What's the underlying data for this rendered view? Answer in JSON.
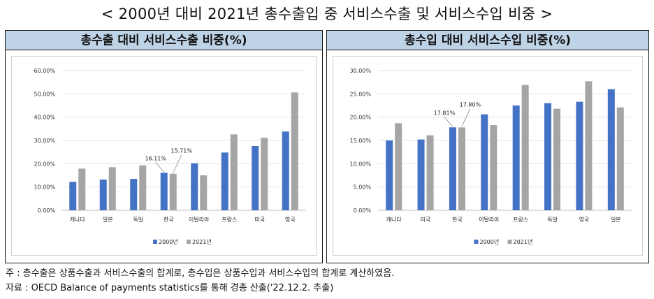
{
  "title": "< 2000년 대비 2021년 총수출입 중 서비스수출 및 서비스수입 비중 >",
  "colors": {
    "series_2000": "#4472c4",
    "series_2021": "#a5a5a5",
    "header_bg": "#bfd3e7"
  },
  "chart_data": [
    {
      "type": "bar",
      "title": "총수출 대비 서비스수출 비중(%)",
      "categories": [
        "캐나다",
        "일본",
        "독일",
        "한국",
        "이탈리아",
        "프랑스",
        "미국",
        "영국"
      ],
      "series": [
        {
          "name": "2000년",
          "values": [
            12.2,
            13.2,
            13.5,
            16.11,
            20.2,
            24.8,
            27.6,
            33.8
          ]
        },
        {
          "name": "2021년",
          "values": [
            17.9,
            18.5,
            19.3,
            15.71,
            15.0,
            32.6,
            31.1,
            50.6
          ]
        }
      ],
      "ylim": [
        0,
        60
      ],
      "yticks": [
        0,
        10,
        20,
        30,
        40,
        50,
        60
      ],
      "ytick_labels": [
        "0.00%",
        "10.00%",
        "20.00%",
        "30.00%",
        "40.00%",
        "50.00%",
        "60.00%"
      ],
      "annotations": [
        {
          "category": "한국",
          "series": "2000년",
          "text": "16.11%"
        },
        {
          "category": "한국",
          "series": "2021년",
          "text": "15.71%"
        }
      ],
      "legend": [
        "2000년",
        "2021년"
      ],
      "legend_position": "bottom",
      "xlabel": "",
      "ylabel": ""
    },
    {
      "type": "bar",
      "title": "총수입 대비 서비스수입 비중(%)",
      "categories": [
        "캐나다",
        "미국",
        "한국",
        "이탈리아",
        "프랑스",
        "독일",
        "영국",
        "일본"
      ],
      "series": [
        {
          "name": "2000년",
          "values": [
            15.0,
            15.2,
            17.81,
            20.6,
            22.5,
            23.0,
            23.3,
            26.0
          ]
        },
        {
          "name": "2021년",
          "values": [
            18.7,
            16.1,
            17.8,
            18.3,
            26.9,
            21.8,
            27.7,
            22.1
          ]
        }
      ],
      "ylim": [
        0,
        30
      ],
      "yticks": [
        0,
        5,
        10,
        15,
        20,
        25,
        30
      ],
      "ytick_labels": [
        "0.00%",
        "5.00%",
        "10.00%",
        "15.00%",
        "20.00%",
        "25.00%",
        "30.00%"
      ],
      "annotations": [
        {
          "category": "한국",
          "series": "2000년",
          "text": "17.81%"
        },
        {
          "category": "한국",
          "series": "2021년",
          "text": "17.80%"
        }
      ],
      "legend": [
        "2000년",
        "2021년"
      ],
      "legend_position": "bottom",
      "xlabel": "",
      "ylabel": ""
    }
  ],
  "footnotes": {
    "note": "주 : 총수출은 상품수출과 서비스수출의 합계로, 총수입은 상품수입과 서비스수입의 합계로 계산하였음.",
    "source": "자료 : OECD Balance of payments statistics를 통해 경총 산출('22.12.2. 추출)"
  }
}
